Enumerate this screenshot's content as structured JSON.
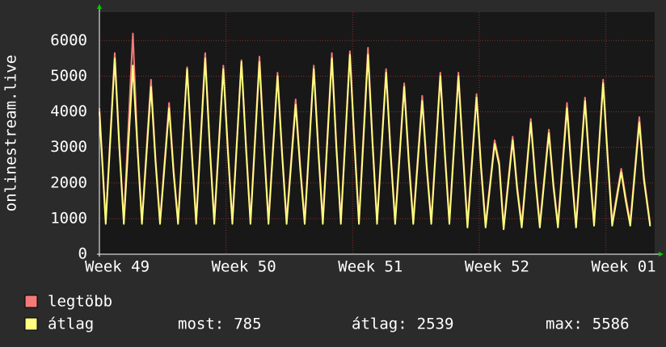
{
  "chart_data": {
    "type": "line",
    "y_label": "onlinestream.live",
    "x": [
      0,
      0.35,
      0.85,
      1.1,
      1.35,
      1.85,
      2.1,
      2.35,
      2.85,
      3.1,
      3.35,
      3.85,
      4.1,
      4.35,
      4.85,
      5.1,
      5.35,
      5.85,
      6.1,
      6.35,
      6.85,
      7.1,
      7.35,
      7.85,
      8.1,
      8.35,
      8.85,
      9.1,
      9.35,
      9.85,
      10.1,
      10.35,
      10.85,
      11.1,
      11.35,
      11.85,
      12.1,
      12.35,
      12.85,
      13.1,
      13.35,
      13.85,
      14.1,
      14.35,
      14.85,
      15.1,
      15.35,
      15.85,
      16.1,
      16.35,
      16.85,
      17.1,
      17.35,
      17.85,
      18.1,
      18.35,
      18.85,
      19.1,
      19.35,
      19.85,
      20.1,
      20.35,
      20.85,
      21.1,
      21.35,
      21.85,
      22.1,
      22.35,
      22.85,
      23.1,
      23.35,
      23.85,
      24.1,
      24.35,
      24.85,
      25.1,
      25.35,
      25.85,
      26.1,
      26.35,
      26.85,
      27.1,
      27.35,
      27.85,
      28.1,
      28.35,
      28.85,
      29.1,
      29.35,
      29.85,
      30.1,
      30.45
    ],
    "series": [
      {
        "name": "legtöbb",
        "color": "#f47a7a",
        "values": [
          4100,
          950,
          5650,
          3100,
          950,
          6200,
          3100,
          950,
          4900,
          2700,
          950,
          4250,
          2400,
          950,
          5250,
          3000,
          950,
          5650,
          3100,
          950,
          5300,
          3000,
          950,
          5450,
          3100,
          950,
          5550,
          3100,
          950,
          5100,
          2900,
          950,
          4350,
          2500,
          950,
          5300,
          3000,
          950,
          5650,
          3100,
          950,
          5700,
          3200,
          950,
          5800,
          3200,
          950,
          5200,
          2900,
          950,
          4800,
          2700,
          950,
          4450,
          2500,
          950,
          5100,
          2900,
          950,
          5100,
          2900,
          850,
          4500,
          2500,
          850,
          3200,
          2600,
          800,
          3300,
          1900,
          850,
          3800,
          2200,
          850,
          3500,
          2000,
          850,
          4250,
          2400,
          850,
          4400,
          2500,
          900,
          4900,
          2800,
          900,
          2400,
          1600,
          900,
          3850,
          2200,
          850
        ]
      },
      {
        "name": "átlag",
        "color": "#ffff80",
        "values": [
          4000,
          850,
          5500,
          3000,
          850,
          5300,
          3000,
          850,
          4700,
          2600,
          850,
          4100,
          2300,
          850,
          5200,
          2900,
          850,
          5500,
          3000,
          850,
          5200,
          2900,
          850,
          5400,
          3000,
          850,
          5400,
          3000,
          850,
          5000,
          2800,
          850,
          4200,
          2400,
          850,
          5200,
          2900,
          850,
          5500,
          3000,
          850,
          5600,
          3100,
          850,
          5600,
          3100,
          850,
          5100,
          2800,
          850,
          4700,
          2600,
          850,
          4300,
          2400,
          850,
          5000,
          2800,
          850,
          5000,
          2800,
          750,
          4400,
          2400,
          750,
          3100,
          2500,
          700,
          3200,
          1800,
          750,
          3700,
          2100,
          750,
          3400,
          1900,
          750,
          4100,
          2300,
          750,
          4300,
          2400,
          800,
          4800,
          2700,
          800,
          2300,
          1500,
          800,
          3700,
          2100,
          785
        ]
      }
    ],
    "xlim": [
      0,
      30.7
    ],
    "xticks": [
      {
        "value": 0,
        "label": "Week 49"
      },
      {
        "value": 7,
        "label": "Week 50"
      },
      {
        "value": 14,
        "label": "Week 51"
      },
      {
        "value": 21,
        "label": "Week 52"
      },
      {
        "value": 28,
        "label": "Week 01"
      }
    ],
    "ylim": [
      0,
      6800
    ],
    "yticks": [
      0,
      1000,
      2000,
      3000,
      4000,
      5000,
      6000
    ],
    "grid": true,
    "stats": [
      {
        "label": "most:",
        "value": 785
      },
      {
        "label": "átlag:",
        "value": 2539
      },
      {
        "label": "max:",
        "value": 5586
      }
    ]
  }
}
